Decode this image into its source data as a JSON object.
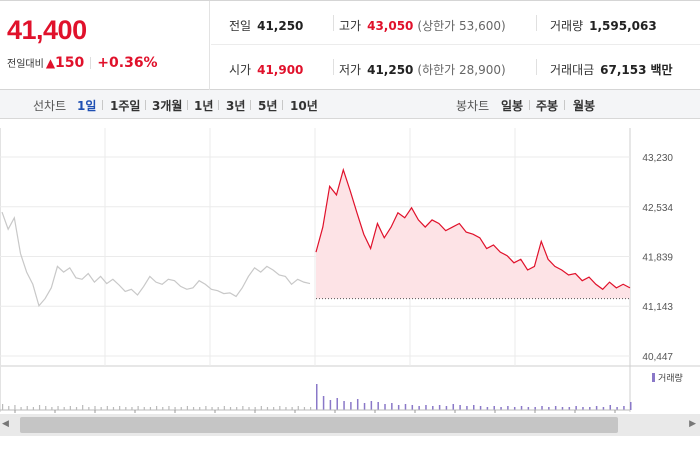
{
  "quote": {
    "price": "41,400",
    "change_label": "전일대비",
    "change_arrow": "▲",
    "change_value": "150",
    "change_pct": "+0.36%"
  },
  "stats": {
    "prev_close": {
      "label": "전일",
      "value": "41,250"
    },
    "high": {
      "label": "고가",
      "value": "43,050",
      "sub": "(상한가 53,600)"
    },
    "volume": {
      "label": "거래량",
      "value": "1,595,063"
    },
    "open": {
      "label": "시가",
      "value": "41,900"
    },
    "low": {
      "label": "저가",
      "value": "41,250",
      "sub": "(하한가 28,900)"
    },
    "turnover": {
      "label": "거래대금",
      "value": "67,153",
      "unit": "백만"
    }
  },
  "toolbar": {
    "line_label": "선차트",
    "line_periods": [
      "1일",
      "1주일",
      "3개월",
      "1년",
      "3년",
      "5년",
      "10년"
    ],
    "candle_label": "봉차트",
    "candle_periods": [
      "일봉",
      "주봉",
      "월봉"
    ]
  },
  "chart_data": {
    "type": "line",
    "y_ticks": [
      "43,230",
      "42,534",
      "41,839",
      "41,143",
      "40,447"
    ],
    "ylim": [
      40447,
      43230
    ],
    "volume_legend": "거래량",
    "colors": {
      "today": "#e0112b",
      "today_fill": "#fde3e6",
      "previous": "#c8c8c8",
      "volume": "#8a78c8",
      "grid": "#ebebeb"
    },
    "previous_day": [
      42460,
      42220,
      42380,
      41880,
      41620,
      41450,
      41150,
      41250,
      41400,
      41700,
      41620,
      41680,
      41540,
      41520,
      41600,
      41480,
      41560,
      41460,
      41520,
      41440,
      41350,
      41380,
      41300,
      41420,
      41560,
      41480,
      41450,
      41520,
      41500,
      41420,
      41380,
      41400,
      41500,
      41450,
      41380,
      41360,
      41320,
      41330,
      41280,
      41400,
      41560,
      41680,
      41620,
      41700,
      41650,
      41580,
      41560,
      41450,
      41520,
      41480,
      41460
    ],
    "today": [
      41900,
      42250,
      42820,
      42700,
      43050,
      42760,
      42450,
      42150,
      41950,
      42300,
      42100,
      42250,
      42450,
      42380,
      42520,
      42350,
      42250,
      42350,
      42300,
      42200,
      42250,
      42300,
      42180,
      42150,
      42100,
      41950,
      42000,
      41900,
      41850,
      41750,
      41800,
      41650,
      41700,
      42050,
      41800,
      41700,
      41650,
      41580,
      41600,
      41500,
      41550,
      41450,
      41380,
      41480,
      41400,
      41450,
      41400
    ],
    "today_open": 41250,
    "volume_prev": [
      6,
      4,
      5,
      3,
      4,
      3,
      5,
      4,
      3,
      4,
      3,
      4,
      3,
      5,
      3,
      4,
      3,
      4,
      3,
      4,
      3,
      3,
      4,
      3,
      3,
      4,
      3,
      4,
      3,
      3,
      4,
      3,
      3,
      4,
      3,
      3,
      4,
      3,
      3,
      4,
      3,
      3,
      4,
      3,
      3,
      4,
      3,
      3,
      4,
      3,
      3
    ],
    "volume_today": [
      26,
      14,
      10,
      12,
      9,
      8,
      11,
      7,
      9,
      8,
      6,
      7,
      5,
      6,
      5,
      4,
      5,
      4,
      5,
      4,
      6,
      5,
      4,
      5,
      4,
      3,
      4,
      3,
      4,
      3,
      4,
      3,
      3,
      4,
      3,
      4,
      3,
      3,
      4,
      3,
      3,
      4,
      3,
      5,
      3,
      4,
      8
    ]
  }
}
